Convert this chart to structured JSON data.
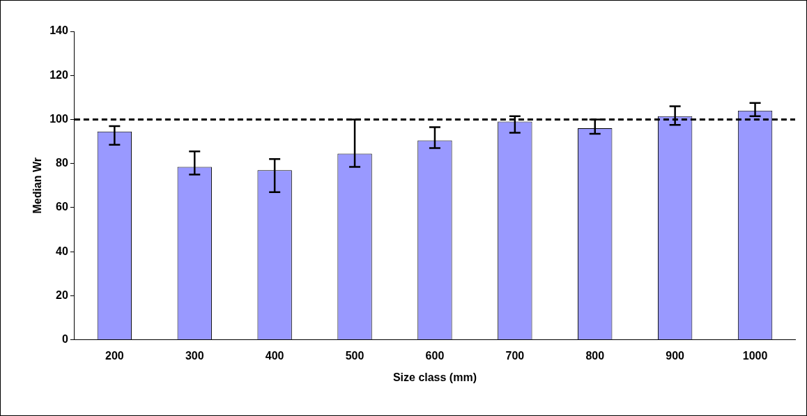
{
  "chart_data": {
    "type": "bar",
    "xlabel": "Size class (mm)",
    "ylabel": "Median Wr",
    "categories": [
      "200",
      "300",
      "400",
      "500",
      "600",
      "700",
      "800",
      "900",
      "1000"
    ],
    "values": [
      94.5,
      78.5,
      77,
      84.5,
      90.5,
      99,
      96,
      101.5,
      104
    ],
    "errors": [
      [
        88.5,
        97
      ],
      [
        75,
        85.5
      ],
      [
        67,
        82
      ],
      [
        78.5,
        100
      ],
      [
        87,
        96.5
      ],
      [
        94,
        101.5
      ],
      [
        93.5,
        100
      ],
      [
        97.5,
        106
      ],
      [
        101.5,
        107.5
      ]
    ],
    "color": "#9999ff",
    "ylim": [
      0,
      140
    ],
    "yticks": [
      0,
      20,
      40,
      60,
      80,
      100,
      120,
      140
    ],
    "grid": false,
    "legend": false,
    "ref_lines": [
      {
        "axis": "y",
        "value": 100,
        "label": null,
        "line_style": "dashed",
        "color": "#000000"
      }
    ]
  }
}
